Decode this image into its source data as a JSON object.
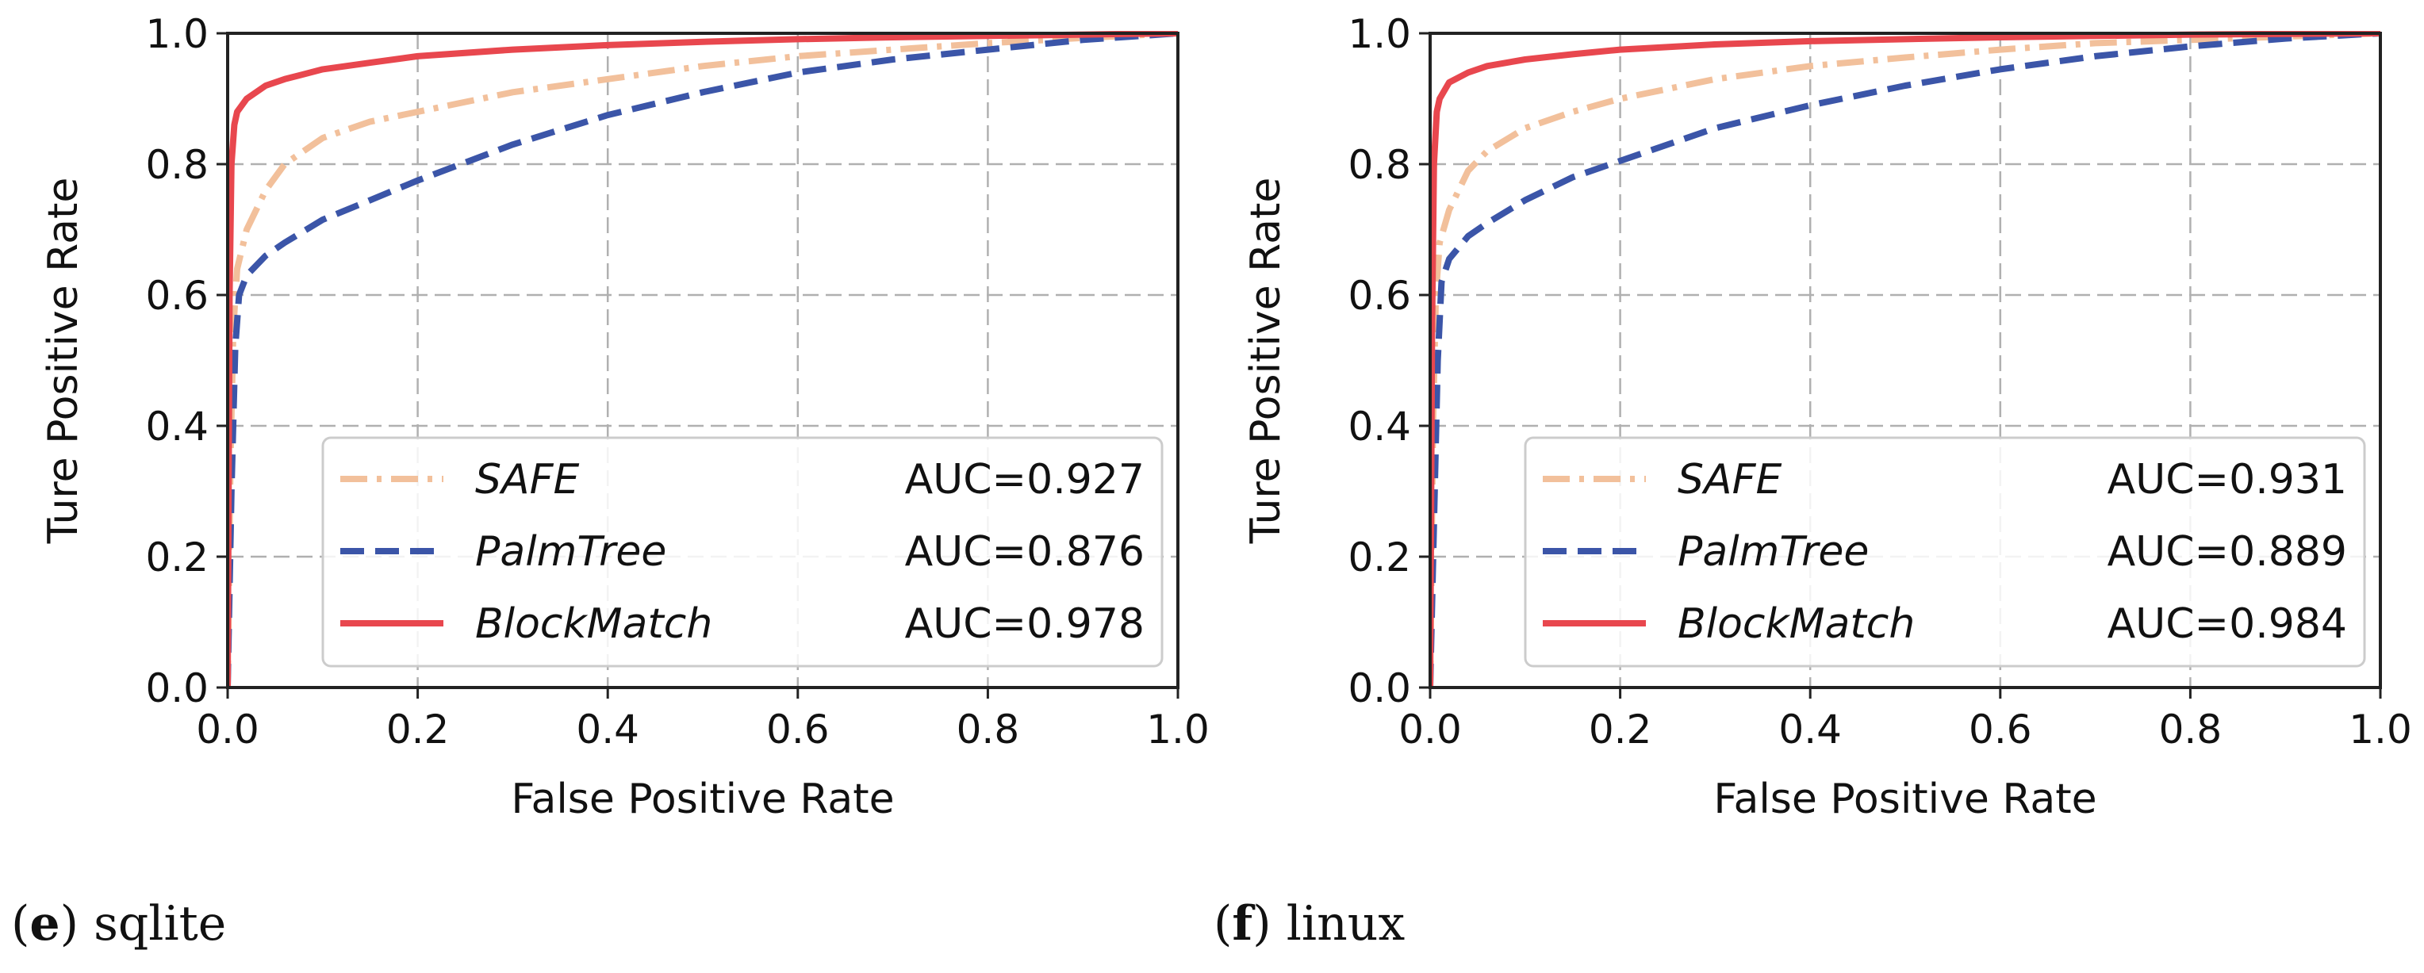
{
  "chart_data": [
    {
      "type": "line",
      "title": "",
      "xlabel": "False Positive Rate",
      "ylabel": "Ture Positive Rate",
      "xlim": [
        0.0,
        1.0
      ],
      "ylim": [
        0.0,
        1.0
      ],
      "xticks": [
        "0.0",
        "0.2",
        "0.4",
        "0.6",
        "0.8",
        "1.0"
      ],
      "yticks": [
        "0.0",
        "0.2",
        "0.4",
        "0.6",
        "0.8",
        "1.0"
      ],
      "grid": true,
      "legend_position": "bottom-right",
      "caption": {
        "letter": "e",
        "text": "sqlite"
      },
      "series": [
        {
          "name": "SAFE",
          "auc_label": "AUC=0.927",
          "color": "#f2c09b",
          "style": "dashdot",
          "x": [
            0,
            0.003,
            0.006,
            0.01,
            0.02,
            0.04,
            0.06,
            0.1,
            0.15,
            0.2,
            0.3,
            0.4,
            0.5,
            0.6,
            0.7,
            0.8,
            0.9,
            1.0
          ],
          "y": [
            0,
            0.35,
            0.55,
            0.64,
            0.7,
            0.76,
            0.8,
            0.84,
            0.865,
            0.88,
            0.91,
            0.93,
            0.95,
            0.965,
            0.975,
            0.985,
            0.993,
            1.0
          ]
        },
        {
          "name": "PalmTree",
          "auc_label": "AUC=0.876",
          "color": "#3b55a8",
          "style": "dashed",
          "x": [
            0,
            0.004,
            0.008,
            0.012,
            0.02,
            0.04,
            0.06,
            0.1,
            0.15,
            0.2,
            0.3,
            0.4,
            0.5,
            0.6,
            0.7,
            0.8,
            0.9,
            1.0
          ],
          "y": [
            0,
            0.3,
            0.52,
            0.6,
            0.63,
            0.66,
            0.68,
            0.715,
            0.745,
            0.775,
            0.83,
            0.875,
            0.91,
            0.94,
            0.96,
            0.975,
            0.99,
            1.0
          ]
        },
        {
          "name": "BlockMatch",
          "auc_label": "AUC=0.978",
          "color": "#e8474e",
          "style": "solid",
          "x": [
            0,
            0.002,
            0.004,
            0.007,
            0.01,
            0.02,
            0.04,
            0.06,
            0.1,
            0.15,
            0.2,
            0.3,
            0.4,
            0.5,
            0.6,
            0.7,
            0.8,
            0.9,
            1.0
          ],
          "y": [
            0,
            0.6,
            0.8,
            0.86,
            0.88,
            0.9,
            0.92,
            0.93,
            0.945,
            0.955,
            0.965,
            0.975,
            0.982,
            0.987,
            0.991,
            0.994,
            0.996,
            0.998,
            1.0
          ]
        }
      ]
    },
    {
      "type": "line",
      "title": "",
      "xlabel": "False Positive Rate",
      "ylabel": "Ture Positive Rate",
      "xlim": [
        0.0,
        1.0
      ],
      "ylim": [
        0.0,
        1.0
      ],
      "xticks": [
        "0.0",
        "0.2",
        "0.4",
        "0.6",
        "0.8",
        "1.0"
      ],
      "yticks": [
        "0.0",
        "0.2",
        "0.4",
        "0.6",
        "0.8",
        "1.0"
      ],
      "grid": true,
      "legend_position": "bottom-right",
      "caption": {
        "letter": "f",
        "text": "linux"
      },
      "series": [
        {
          "name": "SAFE",
          "auc_label": "AUC=0.931",
          "color": "#f2c09b",
          "style": "dashdot",
          "x": [
            0,
            0.003,
            0.006,
            0.01,
            0.02,
            0.04,
            0.06,
            0.1,
            0.15,
            0.2,
            0.3,
            0.4,
            0.5,
            0.6,
            0.7,
            0.8,
            0.9,
            1.0
          ],
          "y": [
            0,
            0.4,
            0.6,
            0.68,
            0.73,
            0.79,
            0.82,
            0.855,
            0.88,
            0.9,
            0.93,
            0.95,
            0.963,
            0.975,
            0.985,
            0.99,
            0.995,
            1.0
          ]
        },
        {
          "name": "PalmTree",
          "auc_label": "AUC=0.889",
          "color": "#3b55a8",
          "style": "dashed",
          "x": [
            0,
            0.004,
            0.008,
            0.012,
            0.02,
            0.04,
            0.06,
            0.1,
            0.15,
            0.2,
            0.3,
            0.4,
            0.5,
            0.6,
            0.7,
            0.8,
            0.9,
            1.0
          ],
          "y": [
            0,
            0.25,
            0.5,
            0.62,
            0.655,
            0.69,
            0.71,
            0.745,
            0.78,
            0.805,
            0.855,
            0.89,
            0.92,
            0.945,
            0.965,
            0.98,
            0.992,
            1.0
          ]
        },
        {
          "name": "BlockMatch",
          "auc_label": "AUC=0.984",
          "color": "#e8474e",
          "style": "solid",
          "x": [
            0,
            0.002,
            0.004,
            0.007,
            0.01,
            0.02,
            0.04,
            0.06,
            0.1,
            0.15,
            0.2,
            0.3,
            0.4,
            0.5,
            0.6,
            0.7,
            0.8,
            0.9,
            1.0
          ],
          "y": [
            0,
            0.55,
            0.8,
            0.88,
            0.9,
            0.925,
            0.94,
            0.95,
            0.96,
            0.968,
            0.975,
            0.983,
            0.988,
            0.991,
            0.994,
            0.996,
            0.998,
            0.999,
            1.0
          ]
        }
      ]
    }
  ]
}
